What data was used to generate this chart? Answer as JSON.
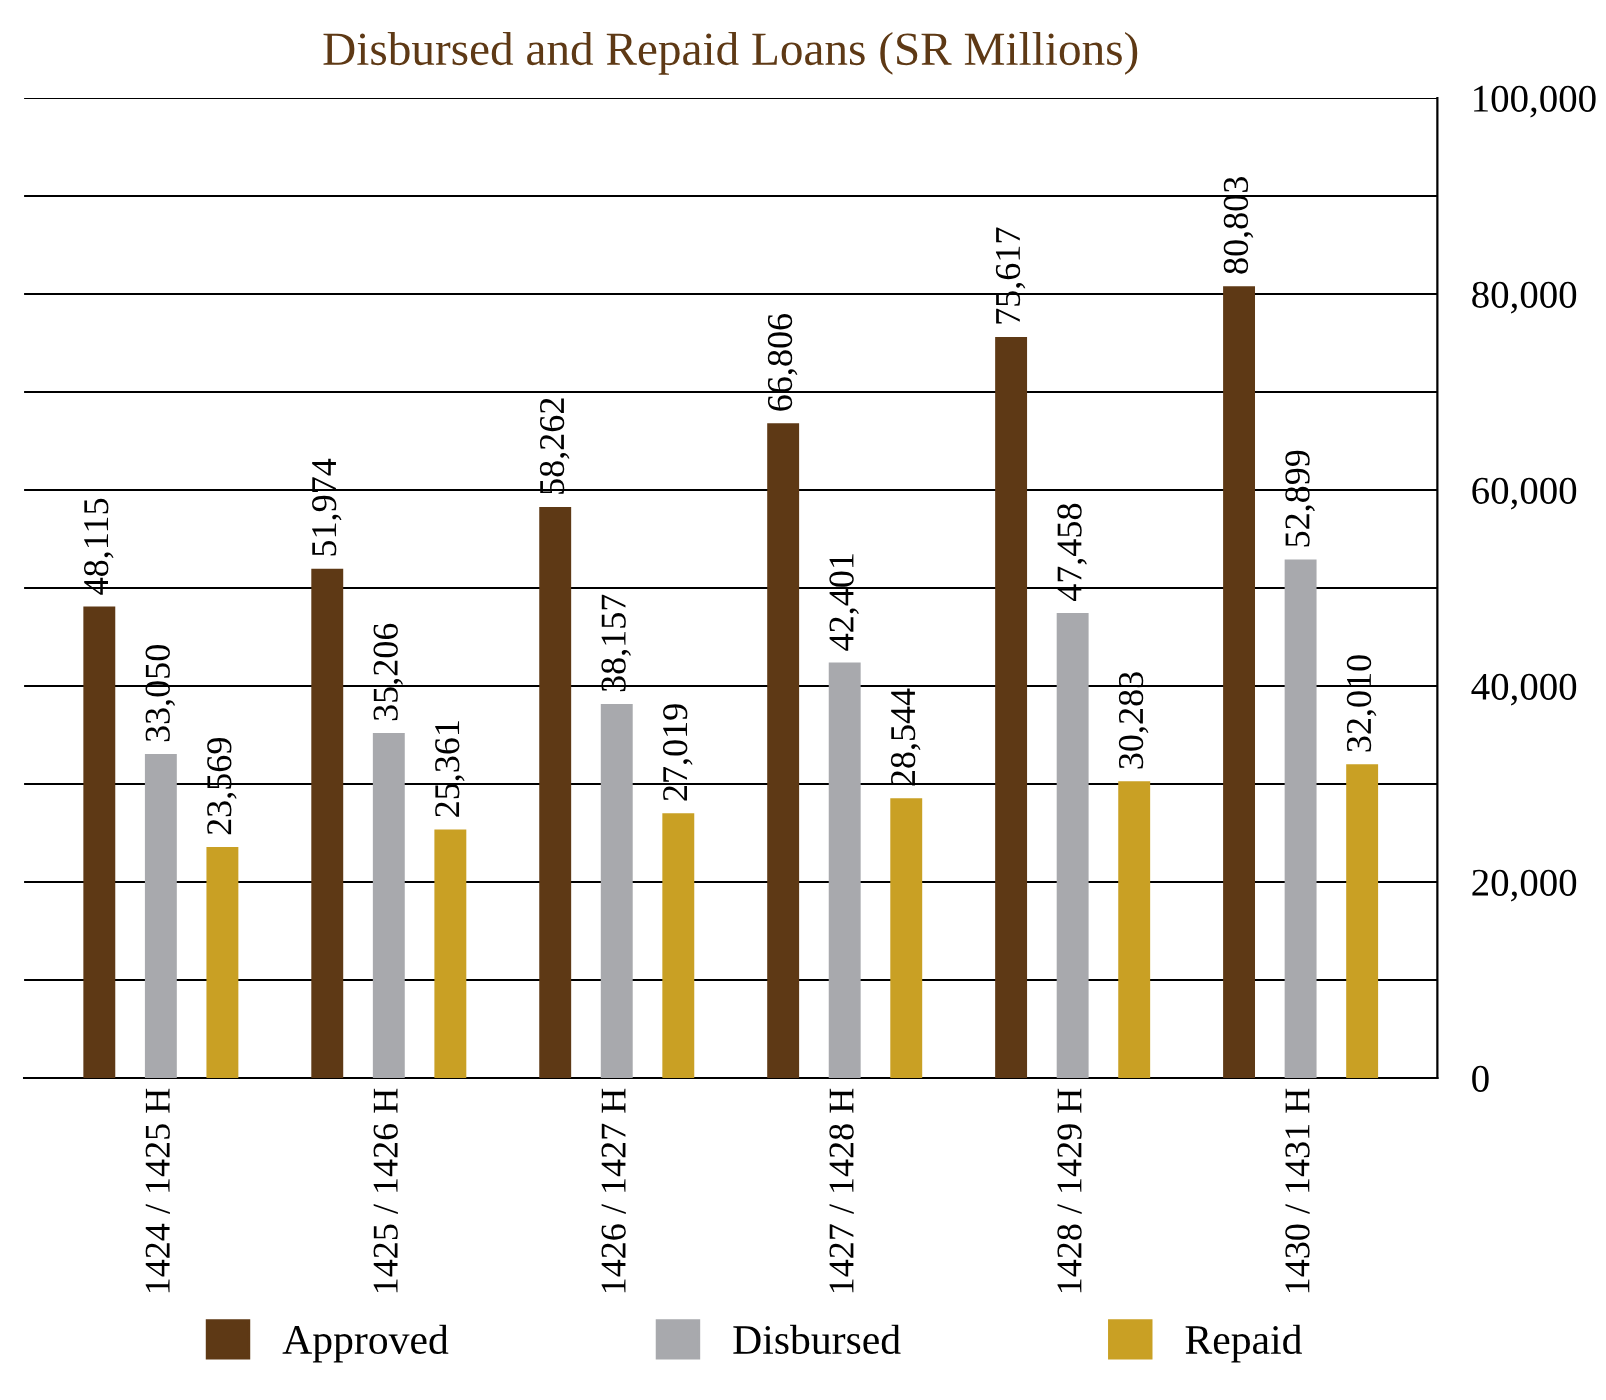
{
  "chart_data": {
    "type": "bar",
    "title": "Disbursed and Repaid Loans (SR Millions)",
    "categories": [
      "1424 / 1425 H",
      "1425 / 1426 H",
      "1426 / 1427 H",
      "1427 / 1428 H",
      "1428 / 1429 H",
      "1430 / 1431 H"
    ],
    "series": [
      {
        "name": "Approved",
        "color": "#5e3915",
        "values": [
          48115,
          51974,
          58262,
          66806,
          75617,
          80803
        ],
        "value_labels": [
          "48,115",
          "51,974",
          "58,262",
          "66,806",
          "75,617",
          "80,803"
        ]
      },
      {
        "name": "Disbursed",
        "color": "#a8a9ad",
        "values": [
          33050,
          35206,
          38157,
          42401,
          47458,
          52899
        ],
        "value_labels": [
          "33,050",
          "35,206",
          "38,157",
          "42,401",
          "47,458",
          "52,899"
        ]
      },
      {
        "name": "Repaid",
        "color": "#c9a024",
        "values": [
          23569,
          25361,
          27019,
          28544,
          30283,
          32010
        ],
        "value_labels": [
          "23,569",
          "25,361",
          "27,019",
          "28,544",
          "30,283",
          "32,010"
        ]
      }
    ],
    "ylim": [
      0,
      100000
    ],
    "yticks": [
      {
        "value": 0,
        "label": "0"
      },
      {
        "value": 10000,
        "label": null
      },
      {
        "value": 20000,
        "label": "20,000"
      },
      {
        "value": 30000,
        "label": null
      },
      {
        "value": 40000,
        "label": "40,000"
      },
      {
        "value": 50000,
        "label": null
      },
      {
        "value": 60000,
        "label": "60,000"
      },
      {
        "value": 70000,
        "label": null
      },
      {
        "value": 80000,
        "label": "80,000"
      },
      {
        "value": 90000,
        "label": null
      },
      {
        "value": 100000,
        "label": "100,000"
      }
    ],
    "grid": "y",
    "legend": "bottom"
  }
}
